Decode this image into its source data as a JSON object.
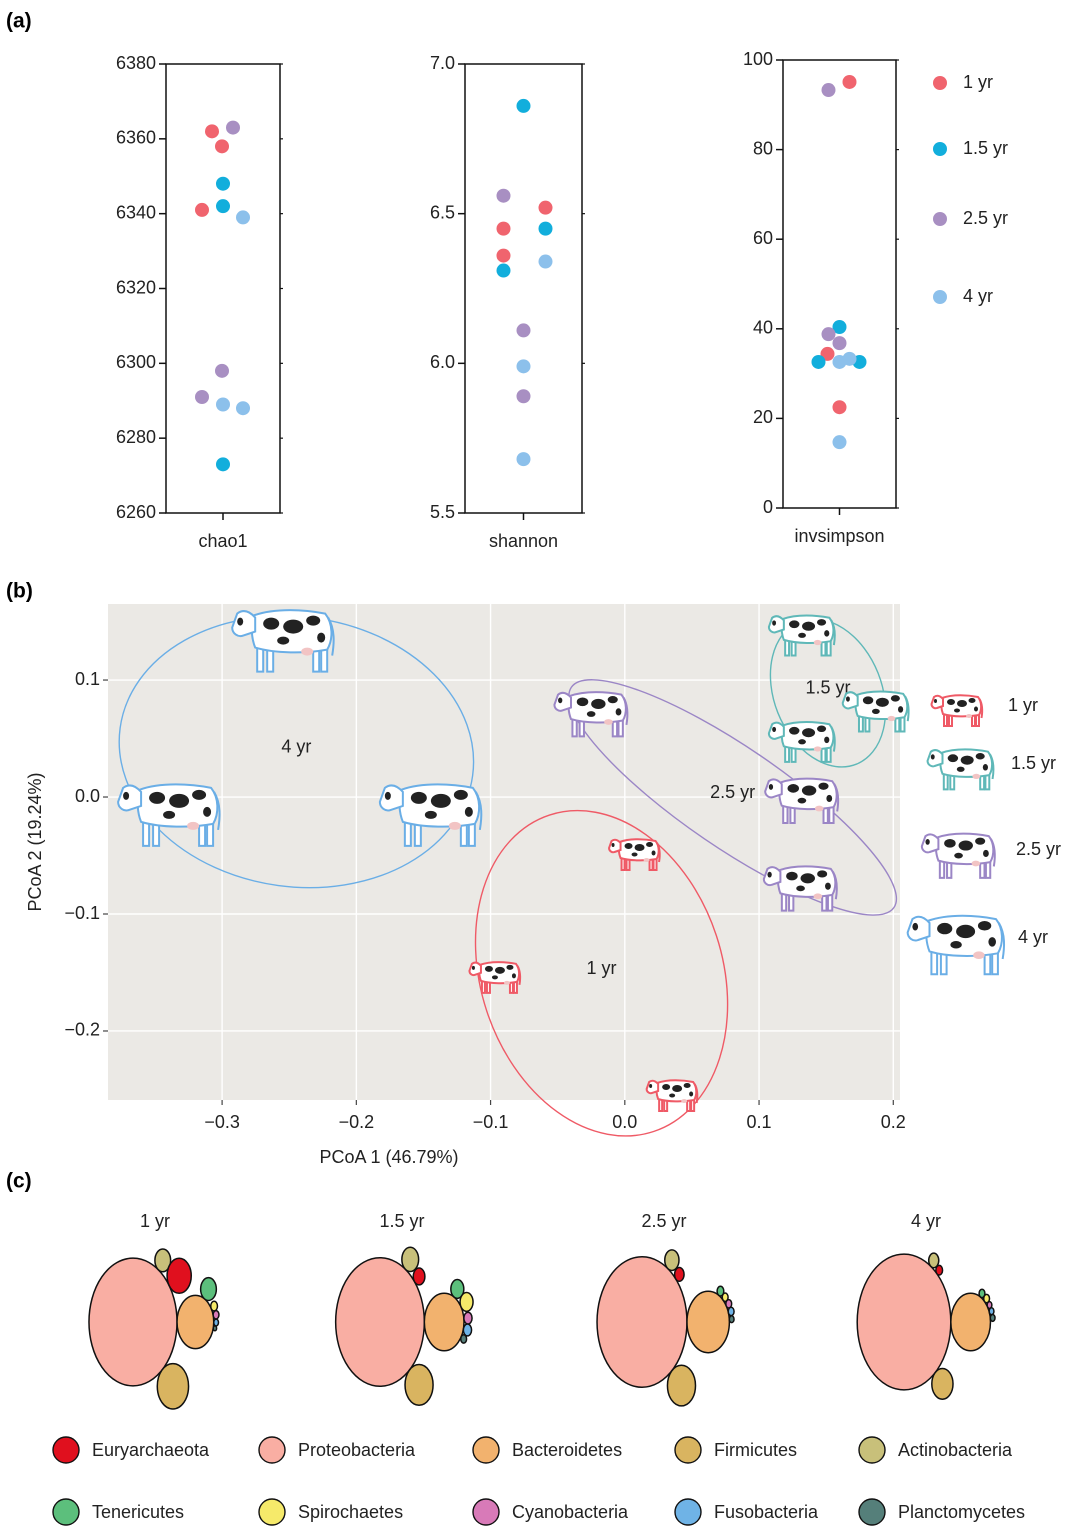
{
  "panel_labels": [
    "(a)",
    "(b)",
    "(c)"
  ],
  "chart_data": [
    {
      "type": "strip",
      "x_label": "chao1",
      "ylim": [
        6260,
        6380
      ],
      "yticks": [
        6260,
        6280,
        6300,
        6320,
        6340,
        6360,
        6380
      ],
      "series": [
        {
          "color": "#f0646e",
          "values": [
            6362,
            6358,
            6341
          ]
        },
        {
          "color": "#12aedc",
          "values": [
            6348,
            6342,
            6273
          ]
        },
        {
          "color": "#a88fc2",
          "values": [
            6363,
            6298,
            6291
          ]
        },
        {
          "color": "#8cc0eb",
          "values": [
            6339,
            6289,
            6288
          ]
        }
      ]
    },
    {
      "type": "strip",
      "x_label": "shannon",
      "ylim": [
        5.5,
        7.0
      ],
      "yticks": [
        5.5,
        {
          "value": 6,
          "label": "6.0"
        },
        6.5,
        {
          "value": 7,
          "label": "7.0"
        }
      ],
      "series": [
        {
          "color": "#f0646e",
          "values": [
            6.45,
            6.36,
            6.52
          ]
        },
        {
          "color": "#12aedc",
          "values": [
            6.86,
            6.31,
            6.45
          ]
        },
        {
          "color": "#a88fc2",
          "values": [
            6.56,
            6.11,
            5.89
          ]
        },
        {
          "color": "#8cc0eb",
          "values": [
            6.34,
            5.99,
            5.68
          ]
        }
      ]
    },
    {
      "type": "strip",
      "x_label": "invsimpson",
      "ylim": [
        0,
        100
      ],
      "yticks": [
        0,
        20,
        40,
        60,
        80,
        100
      ],
      "legend": true,
      "series": [
        {
          "name": "1 yr",
          "color": "#f0646e",
          "values": [
            95.1,
            34.4,
            22.5
          ]
        },
        {
          "name": "1.5 yr",
          "color": "#12aedc",
          "values": [
            40.4,
            32.6,
            32.6
          ]
        },
        {
          "name": "2.5 yr",
          "color": "#a88fc2",
          "values": [
            93.3,
            38.8,
            36.8
          ]
        },
        {
          "name": "4 yr",
          "color": "#8cc0eb",
          "values": [
            32.6,
            33.3,
            14.7
          ]
        }
      ]
    },
    {
      "type": "scatter",
      "x_label": "PCoA 1 (46.79%)",
      "y_label": "PCoA 2 (19.24%)",
      "xlim": [
        -0.385,
        0.205
      ],
      "ylim": [
        -0.259,
        0.165
      ],
      "xticks": [
        {
          "value": -0.3,
          "label": "−0.3"
        },
        {
          "value": -0.2,
          "label": "−0.2"
        },
        {
          "value": -0.1,
          "label": "−0.1"
        },
        {
          "value": 0,
          "label": "0.0"
        },
        0.1,
        0.2
      ],
      "yticks": [
        {
          "value": -0.2,
          "label": "−0.2"
        },
        {
          "value": -0.1,
          "label": "−0.1"
        },
        {
          "value": 0,
          "label": "0.0"
        },
        0.1
      ],
      "grid": true,
      "series": [
        {
          "name": "1 yr",
          "color": "#ef5a66",
          "x": [
            0.008,
            -0.096,
            0.036
          ],
          "values": [
            -0.047,
            -0.152,
            -0.253
          ]
        },
        {
          "name": "1.5 yr",
          "color": "#5fb8b8",
          "x": [
            0.133,
            0.133,
            0.188
          ],
          "values": [
            0.141,
            0.05,
            0.076
          ]
        },
        {
          "name": "2.5 yr",
          "color": "#9b86c6",
          "x": [
            -0.024,
            0.133,
            0.132
          ],
          "values": [
            0.074,
            0.0,
            -0.075
          ]
        },
        {
          "name": "4 yr",
          "color": "#6aaee6",
          "x": [
            -0.253,
            -0.338,
            -0.143
          ],
          "values": [
            0.138,
            -0.011,
            -0.011
          ]
        }
      ]
    },
    {
      "type": "bubble",
      "categories": [
        "Euryarchaeota",
        "Proteobacteria",
        "Bacteroidetes",
        "Firmicutes",
        "Actinobacteria",
        "Tenericutes",
        "Spirochaetes",
        "Cyanobacteria",
        "Fusobacteria",
        "Planctomycetes"
      ],
      "colors": [
        "#e0101e",
        "#f9aea3",
        "#f2b26e",
        "#d9b460",
        "#c8c07a",
        "#5cbf7c",
        "#f6ea6a",
        "#d87ab8",
        "#6fb3e6",
        "#557f7a"
      ],
      "series": [
        {
          "name": "1 yr",
          "values": [
            5.2,
            69,
            12,
            8.7,
            2.2,
            2.2,
            0.4,
            0.3,
            0.2,
            0.1
          ]
        },
        {
          "name": "1.5 yr",
          "values": [
            1.2,
            70,
            14,
            7,
            2.5,
            1.5,
            1.5,
            0.6,
            0.6,
            0.3
          ]
        },
        {
          "name": "2.5 yr",
          "values": [
            0.8,
            72,
            16,
            7,
            1.8,
            0.4,
            0.3,
            0.3,
            0.3,
            0.2
          ]
        },
        {
          "name": "4 yr",
          "values": [
            0.4,
            78,
            14,
            4,
            0.9,
            0.3,
            0.3,
            0.2,
            0.2,
            0.2
          ]
        }
      ]
    }
  ]
}
